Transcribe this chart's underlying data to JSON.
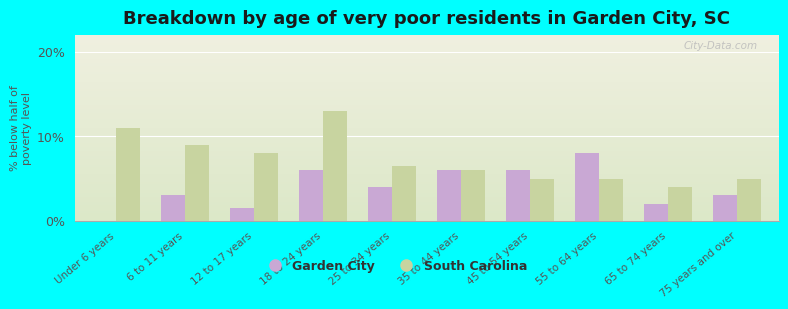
{
  "categories": [
    "Under 6 years",
    "6 to 11 years",
    "12 to 17 years",
    "18 to 24 years",
    "25 to 34 years",
    "35 to 44 years",
    "45 to 54 years",
    "55 to 64 years",
    "65 to 74 years",
    "75 years and over"
  ],
  "garden_city": [
    0.0,
    3.0,
    1.5,
    6.0,
    4.0,
    6.0,
    6.0,
    8.0,
    2.0,
    3.0
  ],
  "south_carolina": [
    11.0,
    9.0,
    8.0,
    13.0,
    6.5,
    6.0,
    5.0,
    5.0,
    4.0,
    5.0
  ],
  "garden_city_color": "#c9a8d4",
  "south_carolina_color": "#c8d4a0",
  "title": "Breakdown by age of very poor residents in Garden City, SC",
  "ylabel": "% below half of\npoverty level",
  "ylim": [
    0,
    22
  ],
  "yticks": [
    0,
    10,
    20
  ],
  "ytick_labels": [
    "0%",
    "10%",
    "20%"
  ],
  "background_color": "#00ffff",
  "plot_bg_top": "#f0f0e0",
  "plot_bg_bottom": "#dce8c8",
  "legend_garden_city": "Garden City",
  "legend_sc": "South Carolina",
  "bar_width": 0.35,
  "title_fontsize": 13,
  "watermark": "City-Data.com"
}
